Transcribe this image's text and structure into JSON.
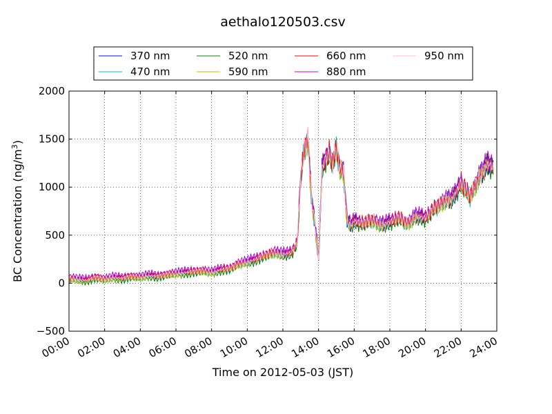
{
  "chart_data": {
    "type": "line",
    "title": "aethalo120503.csv",
    "xlabel": "Time on 2012-05-03 (JST)",
    "ylabel_main": "BC Concentration (ng/m",
    "ylabel_sup": "3",
    "ylabel_end": ")",
    "xlim": [
      "00:00",
      "24:00"
    ],
    "ylim": [
      -500,
      2000
    ],
    "x_ticks": [
      "00:00",
      "02:00",
      "04:00",
      "06:00",
      "08:00",
      "10:00",
      "12:00",
      "14:00",
      "16:00",
      "18:00",
      "20:00",
      "22:00",
      "24:00"
    ],
    "y_ticks": [
      "−500",
      "0",
      "500",
      "1000",
      "1500",
      "2000"
    ],
    "grid": true,
    "legend_position": "top",
    "x_hours": [
      0,
      0.5,
      1,
      1.5,
      2,
      2.5,
      3,
      3.5,
      4,
      4.5,
      5,
      5.5,
      6,
      6.5,
      7,
      7.5,
      8,
      8.5,
      9,
      9.5,
      10,
      10.5,
      11,
      11.5,
      12,
      12.5,
      12.8,
      13,
      13.2,
      13.4,
      13.6,
      13.8,
      14,
      14.2,
      14.4,
      14.6,
      14.8,
      15,
      15.2,
      15.4,
      15.6,
      15.8,
      16,
      16.5,
      17,
      17.5,
      18,
      18.5,
      19,
      19.5,
      20,
      20.5,
      21,
      21.5,
      22,
      22.5,
      23,
      23.5,
      23.8
    ],
    "baseline_values": [
      50,
      40,
      30,
      60,
      40,
      60,
      50,
      70,
      60,
      80,
      70,
      90,
      100,
      110,
      120,
      130,
      110,
      140,
      150,
      200,
      220,
      250,
      290,
      320,
      300,
      320,
      420,
      1100,
      1400,
      1500,
      900,
      600,
      250,
      1200,
      1300,
      1350,
      1250,
      1400,
      1200,
      1150,
      650,
      600,
      650,
      620,
      660,
      600,
      640,
      680,
      620,
      700,
      680,
      780,
      850,
      880,
      1050,
      900,
      1100,
      1250,
      1200
    ],
    "series": [
      {
        "name": "370 nm",
        "color": "#0000ff",
        "offset": 0,
        "phase": 0.3
      },
      {
        "name": "470 nm",
        "color": "#00bfbf",
        "offset": -10,
        "phase": 1.1
      },
      {
        "name": "520 nm",
        "color": "#008000",
        "offset": -25,
        "phase": 1.9
      },
      {
        "name": "590 nm",
        "color": "#bfbf00",
        "offset": -15,
        "phase": 2.7
      },
      {
        "name": "660 nm",
        "color": "#ff0000",
        "offset": 10,
        "phase": 3.5
      },
      {
        "name": "880 nm",
        "color": "#bf00bf",
        "offset": 30,
        "phase": 4.3
      },
      {
        "name": "950 nm",
        "color": "#ffc0cb",
        "offset": 0,
        "phase": 5.1
      }
    ]
  }
}
